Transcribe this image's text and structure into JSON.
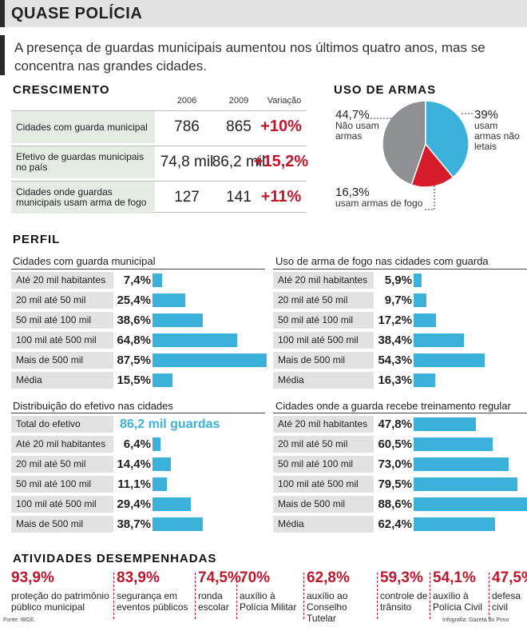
{
  "title": "QUASE POLÍCIA",
  "lead": "A presença de guardas municipais aumentou nos últimos quatro anos, mas se concentra nas grandes cidades.",
  "colors": {
    "accent": "#c0162c",
    "bar": "#3bb1da",
    "label_bg": "#e2e2e2",
    "pie_gray": "#8f9094",
    "pie_blue": "#3bb1da",
    "pie_red": "#d41c2a"
  },
  "crescimento": {
    "title": "CRESCIMENTO",
    "headers": [
      "2006",
      "2009",
      "Variação"
    ],
    "rows": [
      {
        "label": "Cidades com guarda municipal",
        "y2006": "786",
        "y2009": "865",
        "variation": "+10%"
      },
      {
        "label": "Efetivo de guardas municipais no país",
        "y2006": "74,8 mil",
        "y2009": "86,2 mil",
        "variation": "+15,2%"
      },
      {
        "label": "Cidades onde guardas municipais usam arma de fogo",
        "y2006": "127",
        "y2009": "141",
        "variation": "+11%"
      }
    ]
  },
  "uso_armas": {
    "title": "USO DE ARMAS",
    "slices": [
      {
        "pct": "44,7%",
        "label": "Não usam armas"
      },
      {
        "pct": "39%",
        "label": "usam armas não letais"
      },
      {
        "pct": "16,3%",
        "label": "usam armas de fogo"
      }
    ]
  },
  "perfil": {
    "title": "PERFIL"
  },
  "chart_data": [
    {
      "type": "pie",
      "title": "USO DE ARMAS",
      "categories": [
        "Não usam armas",
        "usam armas não letais",
        "usam armas de fogo"
      ],
      "values": [
        44.7,
        39,
        16.3
      ]
    },
    {
      "type": "bar",
      "title": "Cidades com guarda municipal",
      "categories": [
        "Até 20 mil habitantes",
        "20 mil até 50 mil",
        "50 mil até 100 mil",
        "100 mil até 500 mil",
        "Mais de 500 mil",
        "Média"
      ],
      "values": [
        7.4,
        25.4,
        38.6,
        64.8,
        87.5,
        15.5
      ],
      "labels": [
        "7,4%",
        "25,4%",
        "38,6%",
        "64,8%",
        "87,5%",
        "15,5%"
      ],
      "ylim": [
        0,
        100
      ]
    },
    {
      "type": "bar",
      "title": "Uso de arma de fogo nas cidades com guarda",
      "categories": [
        "Até 20 mil habitantes",
        "20 mil até 50 mil",
        "50 mil até 100 mil",
        "100 mil até 500 mil",
        "Mais de 500 mil",
        "Média"
      ],
      "values": [
        5.9,
        9.7,
        17.2,
        38.4,
        54.3,
        16.3
      ],
      "labels": [
        "5,9%",
        "9,7%",
        "17,2%",
        "38,4%",
        "54,3%",
        "16,3%"
      ],
      "ylim": [
        0,
        100
      ]
    },
    {
      "type": "bar",
      "title": "Distribuição do efetivo nas cidades",
      "total_label": "Total do efetivo",
      "total_value": "86,2 mil guardas",
      "categories": [
        "Até 20 mil habitantes",
        "20 mil até 50 mil",
        "50 mil até 100 mil",
        "100 mil até 500 mil",
        "Mais de 500 mil"
      ],
      "values": [
        6.4,
        14.4,
        11.1,
        29.4,
        38.7
      ],
      "labels": [
        "6,4%",
        "14,4%",
        "11,1%",
        "29,4%",
        "38,7%"
      ],
      "ylim": [
        0,
        100
      ]
    },
    {
      "type": "bar",
      "title": "Cidades onde a guarda recebe treinamento regular",
      "categories": [
        "Até 20 mil habitantes",
        "20 mil até 50 mil",
        "50 mil até 100 mil",
        "100 mil até 500 mil",
        "Mais de 500 mil",
        "Média"
      ],
      "values": [
        47.8,
        60.5,
        73.0,
        79.5,
        88.6,
        62.4
      ],
      "labels": [
        "47,8%",
        "60,5%",
        "73,0%",
        "79,5%",
        "88,6%",
        "62,4%"
      ],
      "ylim": [
        0,
        100
      ]
    }
  ],
  "atividades": {
    "title": "ATIVIDADES DESEMPENHADAS",
    "items": [
      {
        "pct": "93,9%",
        "desc": "proteção do patrimônio público municipal"
      },
      {
        "pct": "83,9%",
        "desc": "segurança em eventos públicos"
      },
      {
        "pct": "74,5%",
        "desc": "ronda escolar"
      },
      {
        "pct": "70%",
        "desc": "auxílio à Polícia Militar"
      },
      {
        "pct": "62,8%",
        "desc": "auxílio ao Conselho Tutelar"
      },
      {
        "pct": "59,3%",
        "desc": "controle de trânsito"
      },
      {
        "pct": "54,1%",
        "desc": "auxílio à Polícia Civil"
      },
      {
        "pct": "47,5%",
        "desc": "defesa civil"
      }
    ]
  },
  "footer": {
    "source": "Fonte: IBGE.",
    "credit": "Infografia: Gazeta do Povo"
  }
}
